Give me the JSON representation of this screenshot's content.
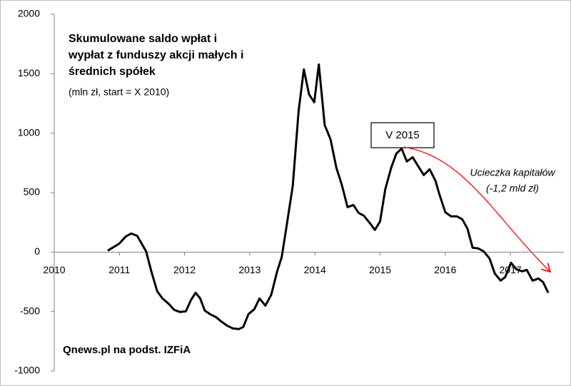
{
  "chart_data": {
    "type": "line",
    "title": [
      "Skumulowane saldo wpłat i",
      "wypłat z funduszy akcji małych i",
      "średnich spółek"
    ],
    "subtitle": "(mln zł, start = X 2010)",
    "source": "Qnews.pl na podst. IZFiA",
    "annotations": [
      {
        "text": "V 2015"
      },
      {
        "text": [
          "Ucieczka kapitałów",
          "(-1,2 mld zł)"
        ],
        "color": "#ff0000"
      }
    ],
    "xlim": [
      2010,
      2017.82
    ],
    "xticks": [
      2010,
      2011,
      2012,
      2013,
      2014,
      2015,
      2016,
      2017
    ],
    "ylim": [
      -1000,
      2000
    ],
    "yticks": [
      -1000,
      -500,
      0,
      500,
      1000,
      1500,
      2000
    ],
    "grid": false,
    "x": [
      2010.82,
      2011.0,
      2011.1,
      2011.18,
      2011.27,
      2011.41,
      2011.49,
      2011.58,
      2011.66,
      2011.75,
      2011.84,
      2011.93,
      2012.02,
      2012.1,
      2012.17,
      2012.24,
      2012.31,
      2012.39,
      2012.48,
      2012.56,
      2012.65,
      2012.74,
      2012.83,
      2012.9,
      2012.98,
      2013.07,
      2013.15,
      2013.24,
      2013.33,
      2013.42,
      2013.49,
      2013.56,
      2013.66,
      2013.75,
      2013.83,
      2013.91,
      2013.99,
      2014.06,
      2014.15,
      2014.24,
      2014.33,
      2014.41,
      2014.5,
      2014.59,
      2014.67,
      2014.75,
      2014.84,
      2014.92,
      2015.0,
      2015.08,
      2015.17,
      2015.25,
      2015.33,
      2015.41,
      2015.5,
      2015.58,
      2015.67,
      2015.76,
      2015.85,
      2015.91,
      2016.0,
      2016.09,
      2016.18,
      2016.26,
      2016.34,
      2016.42,
      2016.51,
      2016.59,
      2016.68,
      2016.76,
      2016.85,
      2016.92,
      2017.01,
      2017.09,
      2017.18,
      2017.25,
      2017.34,
      2017.43,
      2017.5,
      2017.58
    ],
    "series": [
      {
        "name": "Skumulowane saldo",
        "color": "#000000",
        "values": [
          12,
          72,
          132,
          156,
          138,
          6,
          -162,
          -330,
          -390,
          -432,
          -486,
          -504,
          -498,
          -402,
          -342,
          -390,
          -492,
          -522,
          -546,
          -582,
          -618,
          -642,
          -648,
          -630,
          -522,
          -480,
          -390,
          -450,
          -360,
          -162,
          -42,
          198,
          558,
          1188,
          1536,
          1326,
          1260,
          1578,
          1068,
          948,
          708,
          570,
          378,
          396,
          330,
          306,
          246,
          186,
          258,
          528,
          708,
          828,
          870,
          762,
          798,
          726,
          648,
          696,
          600,
          486,
          336,
          300,
          300,
          276,
          198,
          36,
          30,
          6,
          -54,
          -180,
          -240,
          -210,
          -90,
          -144,
          -162,
          -150,
          -240,
          -222,
          -252,
          -342
        ]
      }
    ]
  }
}
